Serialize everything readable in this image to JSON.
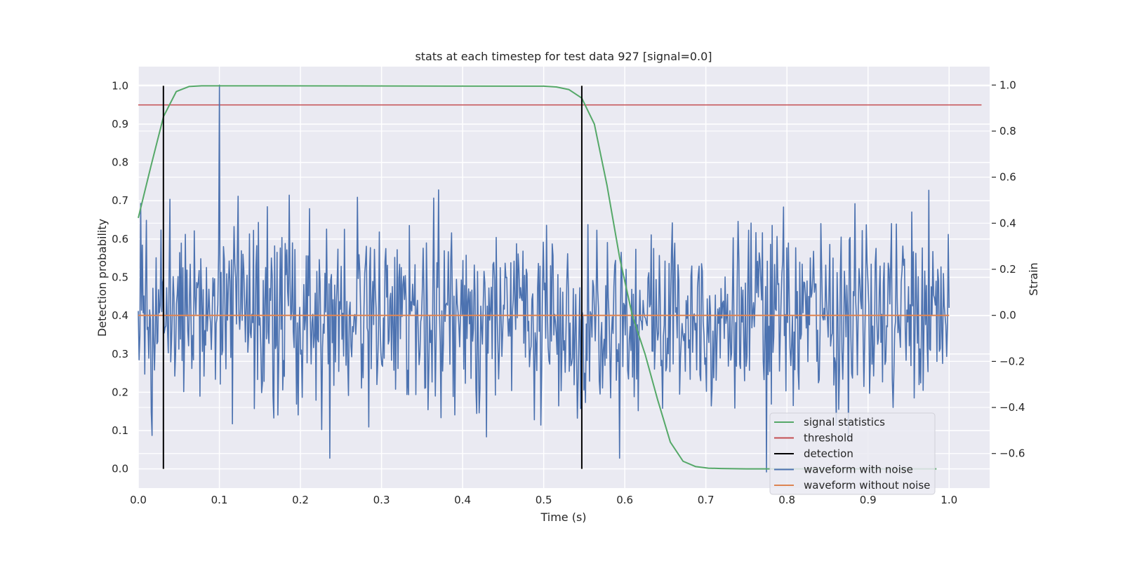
{
  "chart_data": {
    "type": "line",
    "title": "stats at each timestep for test data 927 [signal=0.0]",
    "xlabel": "Time (s)",
    "ylabel": "Detection probability",
    "ylabel_right": "Strain",
    "xlim": [
      0.0,
      1.05
    ],
    "ylim": [
      -0.05,
      1.05
    ],
    "ylim_right": [
      -0.75,
      1.08
    ],
    "x_ticks": [
      "0.0",
      "0.1",
      "0.2",
      "0.3",
      "0.4",
      "0.5",
      "0.6",
      "0.7",
      "0.8",
      "0.9",
      "1.0"
    ],
    "y_ticks": [
      "0.0",
      "0.1",
      "0.2",
      "0.3",
      "0.4",
      "0.5",
      "0.6",
      "0.7",
      "0.8",
      "0.9",
      "1.0"
    ],
    "y_ticks_right": [
      "−0.6",
      "−0.4",
      "−0.2",
      "0.0",
      "0.2",
      "0.4",
      "0.6",
      "0.8",
      "1.0"
    ],
    "grid": true,
    "legend_position": "lower-right",
    "colors": {
      "background": "#eaeaf2",
      "grid": "#ffffff",
      "signal_statistics": "#55a868",
      "threshold": "#c44e52",
      "detection": "#000000",
      "waveform_with_noise": "#4c72b0",
      "waveform_without_noise": "#dd8452"
    },
    "series": [
      {
        "name": "signal statistics",
        "axis": "left",
        "x": [
          0.0,
          0.0156,
          0.0312,
          0.0469,
          0.0625,
          0.0781,
          0.0938,
          0.5,
          0.5156,
          0.5312,
          0.5469,
          0.5625,
          0.5781,
          0.5938,
          0.6094,
          0.625,
          0.6406,
          0.6562,
          0.6719,
          0.6875,
          0.7031,
          0.7188,
          0.75,
          0.8,
          0.9,
          0.9844
        ],
        "y": [
          0.655,
          0.79,
          0.92,
          0.985,
          0.998,
          1.0,
          1.0,
          0.999,
          0.997,
          0.99,
          0.968,
          0.9,
          0.74,
          0.55,
          0.4,
          0.3,
          0.18,
          0.07,
          0.02,
          0.006,
          0.002,
          0.001,
          0.0,
          0.0,
          0.0,
          0.0
        ]
      },
      {
        "name": "threshold",
        "axis": "left",
        "x": [
          0.0,
          1.04
        ],
        "y": [
          0.95,
          0.95
        ]
      },
      {
        "name": "detection",
        "axis": "left",
        "x": [
          0.031,
          0.547
        ],
        "y_range": [
          0.0,
          1.0
        ]
      },
      {
        "name": "waveform with noise",
        "axis": "right",
        "x_range": [
          0.0,
          1.0
        ],
        "samples": 1000,
        "seed": 927,
        "sd": 0.2,
        "peak": {
          "x": 0.1,
          "y": 1.0
        },
        "dip": {
          "x": 0.775,
          "y": -0.68
        }
      },
      {
        "name": "waveform without noise",
        "axis": "right",
        "x": [
          0.0,
          1.0
        ],
        "y": [
          0.0,
          0.0
        ]
      }
    ]
  }
}
